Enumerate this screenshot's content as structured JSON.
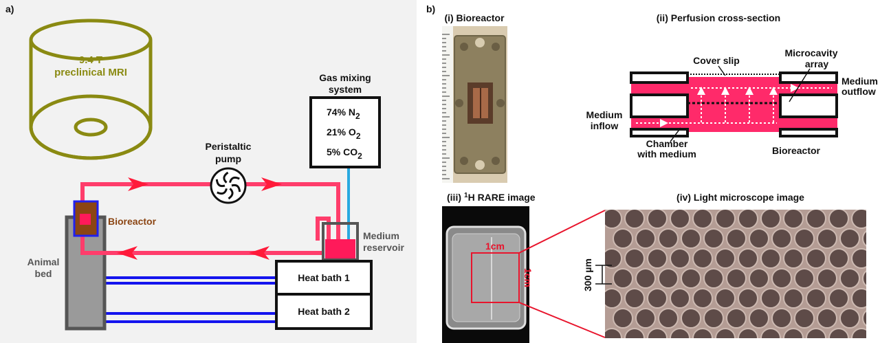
{
  "panel_a": {
    "label": "a)",
    "mri": [
      "9.4 T",
      "preclinical MRI"
    ],
    "gas_title": [
      "Gas mixing",
      "system"
    ],
    "gases": [
      {
        "text": "74% N",
        "sub": "2"
      },
      {
        "text": "21% O",
        "sub": "2"
      },
      {
        "text": "5% CO",
        "sub": "2"
      }
    ],
    "pump": [
      "Peristaltic",
      "pump"
    ],
    "animal_bed": [
      "Animal",
      "bed"
    ],
    "bioreactor": "Bioreactor",
    "reservoir": [
      "Medium",
      "reservoir"
    ],
    "heat_baths": [
      "Heat bath 1",
      "Heat bath 2"
    ]
  },
  "panel_b": {
    "label": "b)",
    "photo_title": "(i) Bioreactor",
    "cross_section": {
      "title": "(ii) Perfusion cross-section",
      "cover_slip": "Cover slip",
      "microcavity": [
        "Microcavity",
        "array"
      ],
      "outflow": [
        "Medium",
        "outflow"
      ],
      "inflow": [
        "Medium",
        "inflow"
      ],
      "chamber": [
        "Chamber",
        "with medium"
      ],
      "bioreactor": "Bioreactor"
    },
    "rare_title": {
      "prefix": "(iii)",
      "sup": "1",
      "text": "H RARE image"
    },
    "scale_labels": [
      "1cm",
      "1cm"
    ],
    "microscope_title": "(iv) Light microscope image",
    "scale_bar": "300 µm"
  }
}
